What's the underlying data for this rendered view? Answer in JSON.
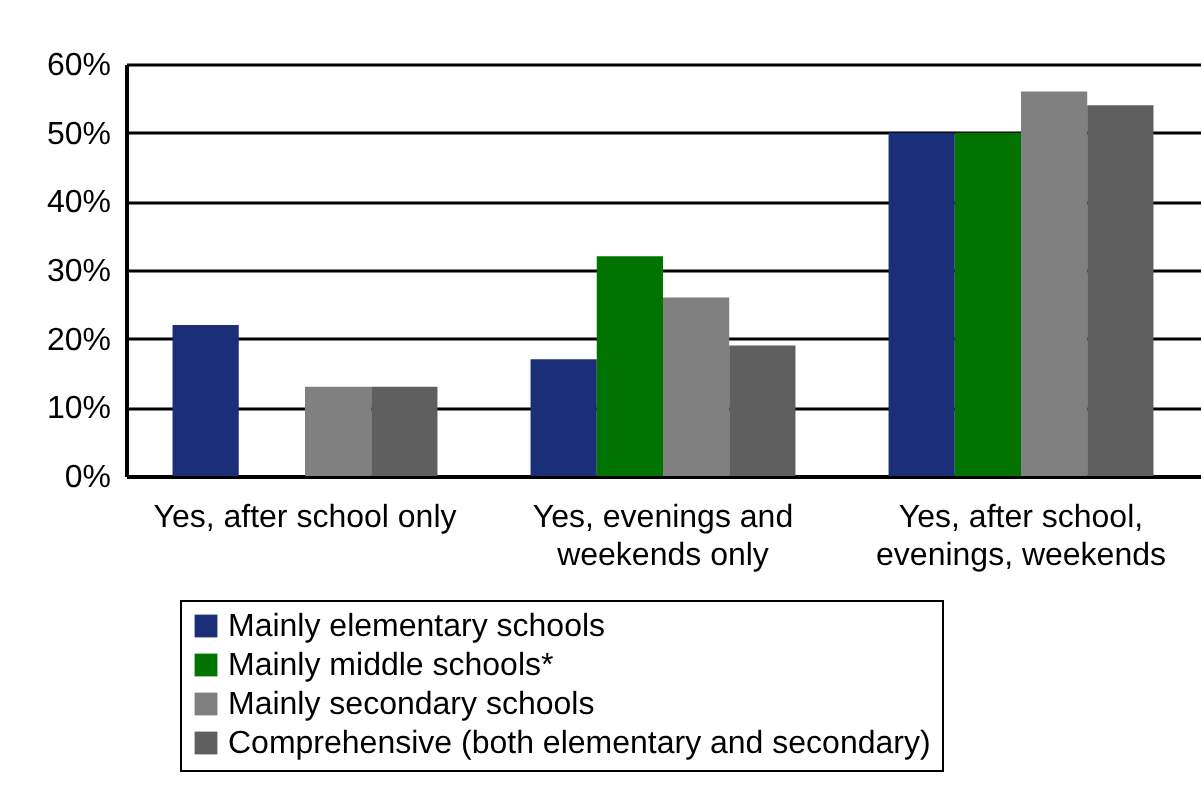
{
  "chart_data": {
    "type": "bar",
    "categories": [
      "Yes, after school only",
      "Yes, evenings and weekends only",
      "Yes, after school, evenings, weekends"
    ],
    "series": [
      {
        "name": "Mainly elementary schools",
        "color": "#1b2f78",
        "values": [
          22,
          17,
          50
        ]
      },
      {
        "name": "Mainly middle schools*",
        "color": "#007300",
        "values": [
          null,
          32,
          50
        ]
      },
      {
        "name": "Mainly secondary schools",
        "color": "#808080",
        "values": [
          13,
          26,
          56
        ]
      },
      {
        "name": "Comprehensive (both elementary and secondary)",
        "color": "#5f5f5f",
        "values": [
          13,
          19,
          54
        ]
      }
    ],
    "ylim": [
      0,
      60
    ],
    "yticks": [
      {
        "value": 0,
        "label": "0%"
      },
      {
        "value": 10,
        "label": "10%"
      },
      {
        "value": 20,
        "label": "20%"
      },
      {
        "value": 30,
        "label": "30%"
      },
      {
        "value": 40,
        "label": "40%"
      },
      {
        "value": 50,
        "label": "50%"
      },
      {
        "value": 60,
        "label": "60%"
      }
    ],
    "grid": "y",
    "legend": "bottom"
  }
}
